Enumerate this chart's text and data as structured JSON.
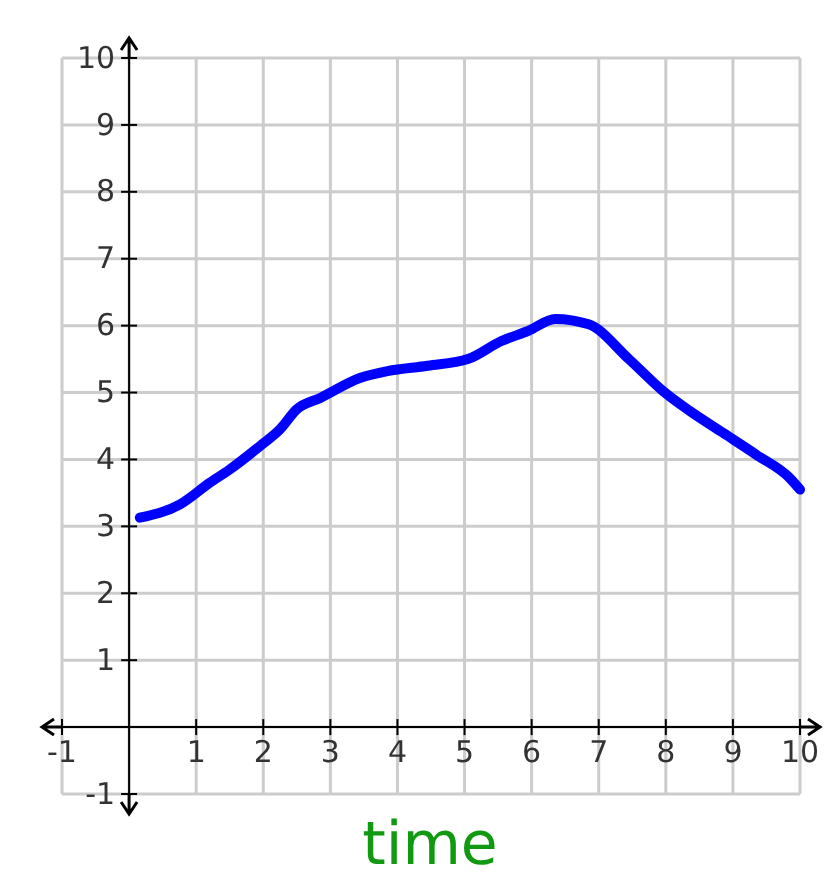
{
  "chart_data": {
    "type": "line",
    "xlabel": "time",
    "xlim": [
      -1,
      10
    ],
    "ylim": [
      -1,
      10
    ],
    "xticks": [
      -1,
      1,
      2,
      3,
      4,
      5,
      6,
      7,
      8,
      9,
      10
    ],
    "yticks": [
      -1,
      1,
      2,
      3,
      4,
      5,
      6,
      7,
      8,
      9,
      10
    ],
    "grid": true,
    "marker": "none",
    "line_style": "solid",
    "x": [
      0.16,
      0.76,
      1.2,
      1.5,
      1.95,
      2.25,
      2.5,
      2.85,
      3.45,
      3.85,
      4.45,
      5.05,
      5.55,
      5.95,
      6.35,
      6.85,
      7.45,
      7.95,
      8.35,
      8.85,
      9.35,
      9.85,
      10
    ],
    "series": [
      {
        "color": "#0000ff",
        "values": [
          3.13,
          3.33,
          3.65,
          3.85,
          4.2,
          4.45,
          4.75,
          4.92,
          5.22,
          5.32,
          5.4,
          5.5,
          5.77,
          5.92,
          6.1,
          6.02,
          5.5,
          5.03,
          4.73,
          4.4,
          4.07,
          3.72,
          3.55
        ]
      }
    ]
  }
}
